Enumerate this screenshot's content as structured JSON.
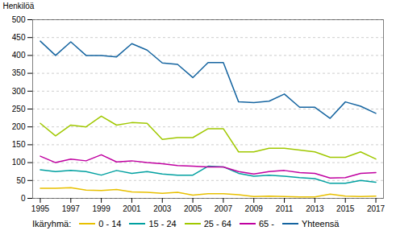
{
  "chart_data": {
    "type": "line",
    "ylabel": "Henkilöä",
    "legend_title": "Ikäryhmä:",
    "legend": "bottom",
    "grid": true,
    "x": [
      1995,
      1996,
      1997,
      1998,
      1999,
      2000,
      2001,
      2002,
      2003,
      2004,
      2005,
      2006,
      2007,
      2008,
      2009,
      2010,
      2011,
      2012,
      2013,
      2014,
      2015,
      2016,
      2017
    ],
    "xlim": [
      1994.5,
      2017.5
    ],
    "xticks": [
      1995,
      1997,
      1999,
      2001,
      2003,
      2005,
      2007,
      2009,
      2011,
      2013,
      2015,
      2017
    ],
    "ylim": [
      0,
      500
    ],
    "yticks": [
      0,
      50,
      100,
      150,
      200,
      250,
      300,
      350,
      400,
      450,
      500
    ],
    "series": [
      {
        "name": "0 - 14",
        "color": "#e8c000",
        "values": [
          28,
          28,
          30,
          23,
          22,
          25,
          18,
          17,
          14,
          17,
          9,
          13,
          13,
          10,
          5,
          6,
          5,
          4,
          4,
          12,
          6,
          5,
          6
        ]
      },
      {
        "name": "15 - 24",
        "color": "#00a0a0",
        "values": [
          80,
          75,
          78,
          75,
          65,
          78,
          70,
          75,
          68,
          65,
          65,
          90,
          88,
          70,
          62,
          65,
          62,
          58,
          55,
          42,
          42,
          50,
          45
        ]
      },
      {
        "name": "25 - 64",
        "color": "#a0c800",
        "values": [
          210,
          175,
          205,
          200,
          230,
          205,
          212,
          210,
          165,
          170,
          170,
          195,
          195,
          130,
          130,
          140,
          140,
          135,
          130,
          115,
          115,
          130,
          110
        ]
      },
      {
        "name": "65 -",
        "color": "#c000a0",
        "values": [
          118,
          100,
          110,
          105,
          122,
          102,
          105,
          100,
          97,
          92,
          90,
          88,
          88,
          75,
          68,
          75,
          78,
          72,
          70,
          57,
          58,
          70,
          72
        ]
      },
      {
        "name": "Yhteensä",
        "color": "#1464a0",
        "values": [
          440,
          400,
          438,
          400,
          400,
          396,
          433,
          415,
          379,
          375,
          338,
          380,
          380,
          270,
          268,
          272,
          292,
          255,
          255,
          224,
          270,
          258,
          238
        ]
      }
    ]
  }
}
